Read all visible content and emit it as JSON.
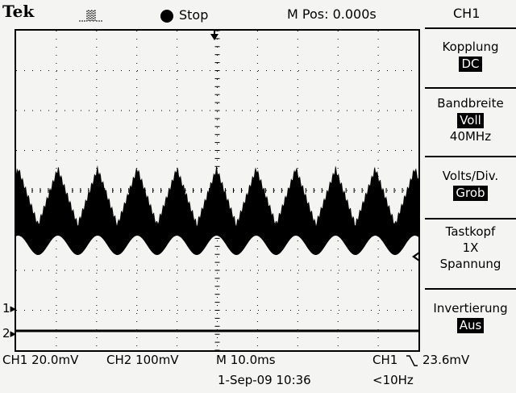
{
  "header": {
    "brand": "Tek",
    "trigger_icon": "trigger-pulse-icon",
    "run_state": "Stop",
    "m_pos": "M Pos: 0.000s",
    "channel_menu_title": "CH1"
  },
  "menu": {
    "kopplung": {
      "label": "Kopplung",
      "value": "DC"
    },
    "bandbreite": {
      "label": "Bandbreite",
      "value": "Voll",
      "extra": "40MHz"
    },
    "volts_div": {
      "label": "Volts/Div.",
      "value": "Grob"
    },
    "tastkopf": {
      "label": "Tastkopf",
      "value": "1X",
      "extra": "Spannung"
    },
    "invertierung": {
      "label": "Invertierung",
      "value": "Aus"
    }
  },
  "markers": {
    "ch1": "1",
    "ch2": "2"
  },
  "footer": {
    "ch1_scale": "CH1  20.0mV",
    "ch2_scale": "CH2  100mV",
    "timebase": "M 10.0ms",
    "trigger_source": "CH1",
    "trigger_slope_icon": "falling-edge-icon",
    "trigger_level": "23.6mV",
    "date_time": "1-Sep-09 10:36",
    "frequency": "<10Hz"
  },
  "colors": {
    "background": "#f4f4f2",
    "trace": "#000000"
  }
}
